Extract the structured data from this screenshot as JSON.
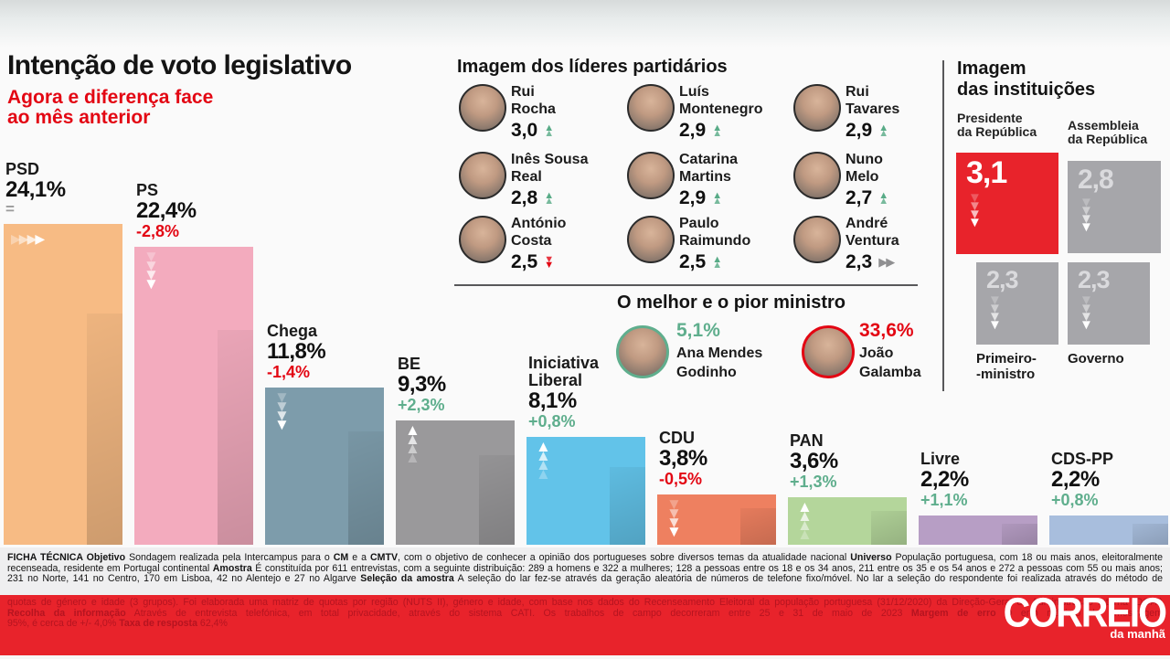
{
  "header": {
    "title": "Intenção de voto legislativo",
    "subtitle_line1": "Agora e diferença face",
    "subtitle_line2": "ao mês anterior"
  },
  "chart_data": {
    "type": "bar",
    "title": "Intenção de voto legislativo",
    "subtitle": "Agora e diferença face ao mês anterior",
    "unit": "%",
    "categories": [
      "PSD",
      "PS",
      "Chega",
      "BE",
      "Iniciativa Liberal",
      "CDU",
      "PAN",
      "Livre",
      "CDS-PP"
    ],
    "values": [
      24.1,
      22.4,
      11.8,
      9.3,
      8.1,
      3.8,
      3.6,
      2.2,
      2.2
    ],
    "value_labels": [
      "24,1%",
      "22,4%",
      "11,8%",
      "9,3%",
      "8,1%",
      "3,8%",
      "3,6%",
      "2,2%",
      "2,2%"
    ],
    "changes": [
      "=",
      "-2,8%",
      "-1,4%",
      "+2,3%",
      "+0,8%",
      "-0,5%",
      "+1,3%",
      "+1,1%",
      "+0,8%"
    ],
    "trends": [
      "steady",
      "down",
      "down",
      "up",
      "up",
      "down",
      "up",
      "none",
      "none"
    ],
    "name_lines": [
      [
        "PSD"
      ],
      [
        "PS"
      ],
      [
        "Chega"
      ],
      [
        "BE"
      ],
      [
        "Iniciativa",
        "Liberal"
      ],
      [
        "CDU"
      ],
      [
        "PAN"
      ],
      [
        "Livre"
      ],
      [
        "CDS-PP"
      ]
    ],
    "bar_colors": [
      "#f7bb84",
      "#f3abbe",
      "#7d9cab",
      "#9a999b",
      "#62c3e9",
      "#ee8060",
      "#b4d69b",
      "#b79ec5",
      "#a8bedd"
    ],
    "ylim": [
      0,
      25
    ],
    "grid": false,
    "legend": "none"
  },
  "leaders": {
    "heading": "Imagem dos líderes partidários",
    "items": [
      {
        "name_lines": [
          "Rui",
          "Rocha"
        ],
        "value": "3,0",
        "trend": "up"
      },
      {
        "name_lines": [
          "Luís",
          "Montenegro"
        ],
        "value": "2,9",
        "trend": "up"
      },
      {
        "name_lines": [
          "Rui",
          "Tavares"
        ],
        "value": "2,9",
        "trend": "up"
      },
      {
        "name_lines": [
          "Inês Sousa",
          "Real"
        ],
        "value": "2,8",
        "trend": "up"
      },
      {
        "name_lines": [
          "Catarina",
          "Martins"
        ],
        "value": "2,9",
        "trend": "up"
      },
      {
        "name_lines": [
          "Nuno",
          "Melo"
        ],
        "value": "2,7",
        "trend": "up"
      },
      {
        "name_lines": [
          "António",
          "Costa"
        ],
        "value": "2,5",
        "trend": "down"
      },
      {
        "name_lines": [
          "Paulo",
          "Raimundo"
        ],
        "value": "2,5",
        "trend": "up"
      },
      {
        "name_lines": [
          "André",
          "Ventura"
        ],
        "value": "2,3",
        "trend": "right"
      }
    ]
  },
  "ministers": {
    "heading": "O melhor e o pior ministro",
    "best": {
      "value": "5,1%",
      "name_lines": [
        "Ana Mendes",
        "Godinho"
      ],
      "ring_color": "#5fae8d",
      "value_color": "#5fae8d"
    },
    "worst": {
      "value": "33,6%",
      "name_lines": [
        "João",
        "Galamba"
      ],
      "ring_color": "#e30613",
      "value_color": "#e30613"
    }
  },
  "institutions": {
    "heading_line1": "Imagem",
    "heading_line2": "das instituições",
    "items": [
      {
        "label_lines": [
          "Presidente",
          "da República"
        ],
        "value": "3,1",
        "style": "red",
        "trend": "down"
      },
      {
        "label_lines": [
          "Assembleia",
          "da República"
        ],
        "value": "2,8",
        "style": "gray",
        "trend": "down"
      },
      {
        "label_lines": [
          "Primeiro-",
          "-ministro"
        ],
        "value": "2,3",
        "style": "gray",
        "trend": "down"
      },
      {
        "label_lines": [
          "Governo"
        ],
        "value": "2,3",
        "style": "gray",
        "trend": "down"
      }
    ]
  },
  "footer": {
    "white_lines": [
      [
        {
          "t": "FICHA TÉCNICA Objetivo ",
          "b": true
        },
        {
          "t": "Sondagem realizada pela Intercampus para o ",
          "b": false
        },
        {
          "t": "CM",
          "b": true
        },
        {
          "t": " e a ",
          "b": false
        },
        {
          "t": "CMTV",
          "b": true
        },
        {
          "t": ", com o objetivo de conhecer a opinião dos portugueses sobre diversos temas da atualidade nacional ",
          "b": false
        },
        {
          "t": "Universo",
          "b": true
        },
        {
          "t": " População portuguesa, com 18 ou mais anos, eleitoralmente",
          "b": false
        }
      ],
      [
        {
          "t": "recenseada, residente em Portugal continental ",
          "b": false
        },
        {
          "t": "Amostra",
          "b": true
        },
        {
          "t": " É constituída por 611 entrevistas, com a seguinte distribuição: 289 a homens e 322 a mulheres; 128 a pessoas entre os 18 e os 34 anos, 211 entre os 35 e os 54 anos e 272 a pessoas com 55 ou mais anos;",
          "b": false
        }
      ],
      [
        {
          "t": "231 no Norte, 141 no Centro, 170 em Lisboa, 42 no Alentejo e 27 no Algarve ",
          "b": false
        },
        {
          "t": "Seleção da amostra",
          "b": true
        },
        {
          "t": " A seleção do lar fez-se através da geração aleatória de números de telefone fixo/móvel. No lar a seleção do respondente foi realizada através do método de",
          "b": false
        }
      ]
    ],
    "red_lines": [
      [
        {
          "t": "quotas de género e idade (3 grupos). Foi elaborada uma matriz de quotas por região (NUTS II), género e idade, com base nos dados do Recenseamento Eleitoral da população portuguesa (31/12/2020) da Direção-Geral da Administração Interna (DGAI)",
          "b": false
        }
      ],
      [
        {
          "t": "Recolha da informação",
          "b": true
        },
        {
          "t": " Através de entrevista telefónica, em total privacidade, através do sistema CATI. Os trabalhos de campo decorreram entre 25 e 31 de maio de 2023 ",
          "b": false
        },
        {
          "t": "Margem de erro",
          "b": true
        },
        {
          "t": " O erro máximo de amostragem",
          "b": false
        }
      ],
      [
        {
          "t": "95%, é cerca de +/- 4,0% ",
          "b": false
        },
        {
          "t": "Taxa de resposta",
          "b": true
        },
        {
          "t": " 62,4%",
          "b": false
        }
      ]
    ],
    "logo_title": "CORREIO",
    "logo_tagline": "da manhã"
  },
  "colors": {
    "accent_red": "#e30613",
    "positive_green": "#5fae8d",
    "band_red": "#e8232b",
    "institution_gray": "#a6a6aa",
    "divider_gray": "#58585a"
  }
}
